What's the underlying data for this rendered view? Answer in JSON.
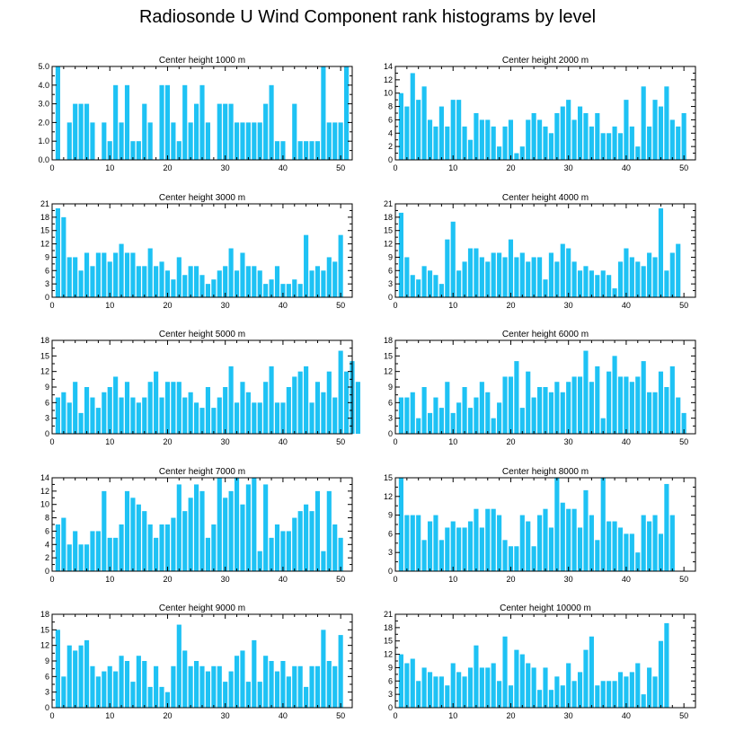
{
  "figure_title": "Radiosonde U Wind Component rank histograms by level",
  "colors": {
    "bar": "#1ec2f4",
    "axis": "#000000",
    "background": "#ffffff"
  },
  "chart_data": [
    {
      "type": "bar",
      "title": "Center height 1000 m",
      "xlim": [
        0,
        52
      ],
      "ylim": [
        0,
        5
      ],
      "xticks": [
        0,
        10,
        20,
        30,
        40,
        50
      ],
      "yticks": [
        0,
        1,
        2,
        3,
        4,
        5
      ],
      "ytick_labels": [
        "0.0",
        "1.0",
        "2.0",
        "3.0",
        "4.0",
        "5.0"
      ],
      "values": [
        5,
        0,
        2,
        3,
        3,
        3,
        2,
        0,
        2,
        1,
        4,
        2,
        4,
        1,
        1,
        3,
        2,
        0,
        4,
        4,
        2,
        1,
        4,
        2,
        3,
        4,
        2,
        0,
        3,
        3,
        3,
        2,
        2,
        2,
        2,
        2,
        3,
        4,
        1,
        1,
        0,
        3,
        1,
        1,
        1,
        1,
        5,
        2,
        2,
        2,
        5
      ]
    },
    {
      "type": "bar",
      "title": "Center height 2000 m",
      "xlim": [
        0,
        52
      ],
      "ylim": [
        0,
        14
      ],
      "xticks": [
        0,
        10,
        20,
        30,
        40,
        50
      ],
      "yticks": [
        0,
        2,
        4,
        6,
        8,
        10,
        12,
        14
      ],
      "ytick_labels": [
        "0",
        "2",
        "4",
        "6",
        "8",
        "10",
        "12",
        "14"
      ],
      "values": [
        10,
        8,
        13,
        9,
        11,
        6,
        5,
        8,
        5,
        9,
        9,
        5,
        3,
        7,
        6,
        6,
        5,
        2,
        5,
        6,
        1,
        2,
        6,
        7,
        6,
        5,
        4,
        7,
        8,
        9,
        6,
        8,
        7,
        5,
        7,
        4,
        4,
        5,
        4,
        9,
        5,
        2,
        11,
        5,
        9,
        8,
        11,
        6,
        5,
        7
      ]
    },
    {
      "type": "bar",
      "title": "Center height 3000 m",
      "xlim": [
        0,
        52
      ],
      "ylim": [
        0,
        21
      ],
      "xticks": [
        0,
        10,
        20,
        30,
        40,
        50
      ],
      "yticks": [
        0,
        3,
        6,
        9,
        12,
        15,
        18,
        21
      ],
      "ytick_labels": [
        "0",
        "3",
        "6",
        "9",
        "12",
        "15",
        "18",
        "21"
      ],
      "values": [
        20,
        18,
        9,
        9,
        6,
        10,
        7,
        10,
        10,
        8,
        10,
        12,
        10,
        10,
        7,
        7,
        11,
        7,
        8,
        6,
        4,
        9,
        5,
        7,
        7,
        5,
        3,
        4,
        6,
        7,
        11,
        6,
        10,
        7,
        7,
        6,
        3,
        4,
        7,
        3,
        3,
        4,
        3,
        14,
        6,
        7,
        6,
        9,
        8,
        14
      ]
    },
    {
      "type": "bar",
      "title": "Center height 4000 m",
      "xlim": [
        0,
        52
      ],
      "ylim": [
        0,
        21
      ],
      "xticks": [
        0,
        10,
        20,
        30,
        40,
        50
      ],
      "yticks": [
        0,
        3,
        6,
        9,
        12,
        15,
        18,
        21
      ],
      "ytick_labels": [
        "0",
        "3",
        "6",
        "9",
        "12",
        "15",
        "18",
        "21"
      ],
      "values": [
        19,
        9,
        5,
        4,
        7,
        6,
        5,
        3,
        13,
        17,
        6,
        8,
        11,
        11,
        9,
        8,
        10,
        10,
        9,
        13,
        9,
        10,
        8,
        9,
        9,
        4,
        10,
        8,
        12,
        11,
        8,
        6,
        7,
        6,
        5,
        6,
        5,
        2,
        8,
        11,
        9,
        8,
        7,
        10,
        9,
        20,
        6,
        10,
        12
      ]
    },
    {
      "type": "bar",
      "title": "Center height 5000 m",
      "xlim": [
        0,
        52
      ],
      "ylim": [
        0,
        18
      ],
      "xticks": [
        0,
        10,
        20,
        30,
        40,
        50
      ],
      "yticks": [
        0,
        3,
        6,
        9,
        12,
        15,
        18
      ],
      "ytick_labels": [
        "0",
        "3",
        "6",
        "9",
        "12",
        "15",
        "18"
      ],
      "values": [
        7,
        8,
        6,
        10,
        4,
        9,
        7,
        5,
        8,
        9,
        11,
        7,
        10,
        7,
        6,
        7,
        10,
        12,
        7,
        10,
        10,
        10,
        7,
        8,
        6,
        5,
        9,
        5,
        7,
        9,
        13,
        6,
        10,
        8,
        6,
        6,
        10,
        13,
        6,
        6,
        9,
        11,
        12,
        13,
        6,
        10,
        8,
        12,
        7,
        16,
        12,
        14,
        10
      ]
    },
    {
      "type": "bar",
      "title": "Center height 6000 m",
      "xlim": [
        0,
        52
      ],
      "ylim": [
        0,
        18
      ],
      "xticks": [
        0,
        10,
        20,
        30,
        40,
        50
      ],
      "yticks": [
        0,
        3,
        6,
        9,
        12,
        15,
        18
      ],
      "ytick_labels": [
        "0",
        "3",
        "6",
        "9",
        "12",
        "15",
        "18"
      ],
      "values": [
        7,
        7,
        8,
        3,
        9,
        4,
        7,
        5,
        10,
        4,
        6,
        9,
        5,
        7,
        10,
        8,
        3,
        6,
        11,
        11,
        14,
        5,
        12,
        7,
        9,
        9,
        8,
        10,
        8,
        10,
        11,
        11,
        16,
        10,
        13,
        3,
        12,
        15,
        11,
        11,
        10,
        11,
        14,
        8,
        8,
        12,
        9,
        13,
        7,
        4
      ]
    },
    {
      "type": "bar",
      "title": "Center height 7000 m",
      "xlim": [
        0,
        52
      ],
      "ylim": [
        0,
        14
      ],
      "xticks": [
        0,
        10,
        20,
        30,
        40,
        50
      ],
      "yticks": [
        0,
        2,
        4,
        6,
        8,
        10,
        12,
        14
      ],
      "ytick_labels": [
        "0",
        "2",
        "4",
        "6",
        "8",
        "10",
        "12",
        "14"
      ],
      "values": [
        7,
        8,
        4,
        6,
        4,
        4,
        6,
        6,
        12,
        5,
        5,
        7,
        12,
        11,
        10,
        9,
        7,
        5,
        7,
        7,
        8,
        13,
        9,
        11,
        13,
        12,
        5,
        7,
        14,
        11,
        12,
        14,
        10,
        13,
        14,
        3,
        13,
        5,
        7,
        6,
        6,
        8,
        9,
        10,
        9,
        12,
        3,
        12,
        7,
        5
      ]
    },
    {
      "type": "bar",
      "title": "Center height 8000 m",
      "xlim": [
        0,
        52
      ],
      "ylim": [
        0,
        15
      ],
      "xticks": [
        0,
        10,
        20,
        30,
        40,
        50
      ],
      "yticks": [
        0,
        3,
        6,
        9,
        12,
        15
      ],
      "ytick_labels": [
        "0",
        "3",
        "6",
        "9",
        "12",
        "15"
      ],
      "values": [
        15,
        9,
        9,
        9,
        5,
        8,
        9,
        5,
        7,
        8,
        7,
        7,
        8,
        10,
        7,
        10,
        10,
        9,
        5,
        4,
        4,
        9,
        8,
        4,
        9,
        10,
        7,
        15,
        11,
        10,
        10,
        7,
        13,
        9,
        5,
        15,
        8,
        8,
        7,
        6,
        6,
        3,
        9,
        8,
        9,
        6,
        14,
        9
      ]
    },
    {
      "type": "bar",
      "title": "Center height 9000 m",
      "xlim": [
        0,
        52
      ],
      "ylim": [
        0,
        18
      ],
      "xticks": [
        0,
        10,
        20,
        30,
        40,
        50
      ],
      "yticks": [
        0,
        3,
        6,
        9,
        12,
        15,
        18
      ],
      "ytick_labels": [
        "0",
        "3",
        "6",
        "9",
        "12",
        "15",
        "18"
      ],
      "values": [
        15,
        6,
        12,
        11,
        12,
        13,
        8,
        6,
        7,
        8,
        7,
        10,
        9,
        5,
        10,
        9,
        4,
        8,
        4,
        3,
        8,
        16,
        11,
        8,
        9,
        8,
        7,
        8,
        8,
        5,
        7,
        10,
        11,
        5,
        13,
        5,
        10,
        9,
        7,
        9,
        6,
        8,
        8,
        4,
        8,
        8,
        15,
        9,
        8,
        14
      ]
    },
    {
      "type": "bar",
      "title": "Center height 10000 m",
      "xlim": [
        0,
        52
      ],
      "ylim": [
        0,
        21
      ],
      "xticks": [
        0,
        10,
        20,
        30,
        40,
        50
      ],
      "yticks": [
        0,
        3,
        6,
        9,
        12,
        15,
        18,
        21
      ],
      "ytick_labels": [
        "0",
        "3",
        "6",
        "9",
        "12",
        "15",
        "18",
        "21"
      ],
      "values": [
        12,
        10,
        11,
        6,
        9,
        8,
        7,
        7,
        5,
        10,
        8,
        7,
        9,
        14,
        9,
        9,
        10,
        6,
        16,
        5,
        13,
        12,
        10,
        9,
        4,
        9,
        4,
        7,
        5,
        10,
        6,
        8,
        13,
        16,
        5,
        6,
        6,
        6,
        8,
        7,
        8,
        10,
        3,
        9,
        7,
        15,
        19
      ]
    }
  ]
}
